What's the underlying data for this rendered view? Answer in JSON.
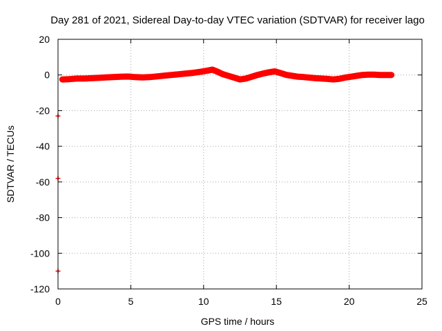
{
  "chart_data": {
    "type": "scatter",
    "title": "Day 281 of 2021, Sidereal Day-to-day VTEC variation (SDTVAR) for receiver lago",
    "xlabel": "GPS time / hours",
    "ylabel": "SDTVAR / TECUs",
    "xlim": [
      0,
      25
    ],
    "ylim": [
      -120,
      20
    ],
    "xticks": [
      0,
      5,
      10,
      15,
      20,
      25
    ],
    "yticks": [
      -120,
      -100,
      -80,
      -60,
      -40,
      -20,
      0,
      20
    ],
    "grid": true,
    "marker": "+",
    "series": [
      {
        "name": "SDTVAR",
        "color": "#ff0000",
        "x": [
          0.3,
          0.8,
          1.3,
          1.8,
          2.3,
          2.8,
          3.3,
          3.8,
          4.3,
          4.8,
          5.3,
          5.8,
          6.3,
          6.8,
          7.3,
          7.8,
          8.3,
          8.8,
          9.3,
          9.8,
          10.3,
          10.6,
          10.9,
          11.3,
          11.7,
          12.1,
          12.5,
          12.9,
          13.3,
          13.7,
          14.1,
          14.5,
          14.9,
          15.3,
          15.7,
          16.1,
          16.5,
          16.9,
          17.3,
          17.7,
          18.1,
          18.5,
          18.9,
          19.3,
          19.7,
          20.1,
          20.5,
          20.9,
          21.3,
          21.7,
          22.1,
          22.5,
          22.9
        ],
        "y": [
          -2.5,
          -2.3,
          -2.0,
          -2.0,
          -1.8,
          -1.6,
          -1.4,
          -1.2,
          -1.0,
          -0.9,
          -1.2,
          -1.4,
          -1.2,
          -0.8,
          -0.4,
          0.0,
          0.4,
          0.8,
          1.2,
          1.8,
          2.5,
          3.0,
          2.0,
          0.5,
          -0.5,
          -1.5,
          -2.5,
          -2.0,
          -1.0,
          0.0,
          0.8,
          1.5,
          2.0,
          1.0,
          0.0,
          -0.5,
          -1.0,
          -1.2,
          -1.5,
          -1.8,
          -2.0,
          -2.2,
          -2.5,
          -2.2,
          -1.5,
          -1.0,
          -0.5,
          0.0,
          0.2,
          0.2,
          0.0,
          0.0,
          0.0
        ]
      },
      {
        "name": "SDTVAR (outliers)",
        "color": "#ff0000",
        "x": [
          0.0,
          0.0,
          0.0
        ],
        "y": [
          -23,
          -58,
          -110
        ]
      }
    ]
  }
}
